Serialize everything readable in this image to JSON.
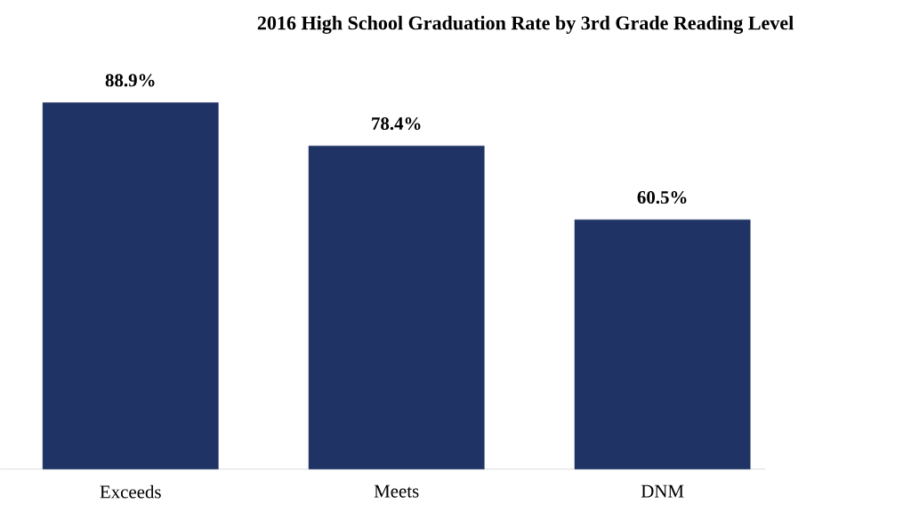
{
  "chart_data": {
    "type": "bar",
    "title": "2016 High School Graduation Rate by 3rd Grade Reading Level",
    "categories": [
      "Exceeds",
      "Meets",
      "DNM"
    ],
    "values": [
      88.9,
      78.4,
      60.5
    ],
    "value_labels": [
      "88.9%",
      "78.4%",
      "60.5%"
    ],
    "color": "#1f3364"
  }
}
